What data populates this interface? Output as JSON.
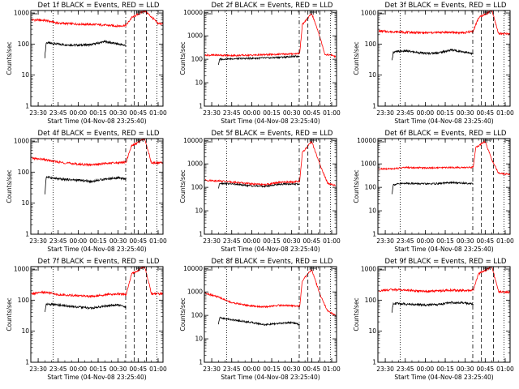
{
  "figure": {
    "colors": {
      "events": "#000000",
      "lld": "#ff0000",
      "axes": "#000000",
      "background": "#ffffff"
    }
  },
  "chart_data": [
    {
      "type": "line",
      "title": "Det 1f BLACK = Events, RED = LLD",
      "xlabel": "Start Time (04-Nov-08 23:25:40)",
      "ylabel": "Counts/sec",
      "xticks": [
        "23:30",
        "23:45",
        "00:00",
        "00:15",
        "00:30",
        "00:45",
        "01:00"
      ],
      "yticks": [
        "1",
        "10",
        "100",
        "1000"
      ],
      "ylim": [
        1,
        1200
      ],
      "yscale": "log",
      "series": [
        {
          "name": "Events",
          "x": [
            "23:35",
            "23:36",
            "23:40",
            "23:50",
            "00:00",
            "00:10",
            "00:20",
            "00:30",
            "00:36"
          ],
          "y": [
            38,
            110,
            105,
            95,
            92,
            96,
            120,
            100,
            90
          ]
        },
        {
          "name": "LLD",
          "x": [
            "23:25",
            "23:35",
            "23:45",
            "00:00",
            "00:15",
            "00:30",
            "00:36",
            "00:40",
            "00:50",
            "01:00",
            "01:05"
          ],
          "y": [
            600,
            580,
            470,
            440,
            420,
            380,
            400,
            700,
            1200,
            460,
            450
          ]
        }
      ]
    },
    {
      "type": "line",
      "title": "Det 2f BLACK = Events, RED = LLD",
      "xlabel": "Start Time (04-Nov-08 23:25:40)",
      "ylabel": "Counts/sec",
      "xticks": [
        "23:30",
        "23:45",
        "00:00",
        "00:15",
        "00:30",
        "00:45",
        "01:00"
      ],
      "yticks": [
        "1",
        "10",
        "100",
        "1000",
        "10000"
      ],
      "ylim": [
        1,
        12000
      ],
      "yscale": "log",
      "series": [
        {
          "name": "Events",
          "x": [
            "23:35",
            "23:36",
            "23:45",
            "00:00",
            "00:15",
            "00:30",
            "00:36"
          ],
          "y": [
            60,
            100,
            105,
            110,
            115,
            130,
            135
          ]
        },
        {
          "name": "LLD",
          "x": [
            "23:25",
            "23:35",
            "23:45",
            "00:00",
            "00:15",
            "00:30",
            "00:36",
            "00:38",
            "00:45",
            "00:50",
            "00:55",
            "01:00",
            "01:03"
          ],
          "y": [
            150,
            150,
            145,
            150,
            160,
            170,
            180,
            3000,
            9000,
            1500,
            160,
            150,
            130
          ]
        }
      ]
    },
    {
      "type": "line",
      "title": "Det 3f BLACK = Events, RED = LLD",
      "xlabel": "Start Time (04-Nov-08 23:25:40)",
      "ylabel": "Counts/sec",
      "xticks": [
        "23:30",
        "23:45",
        "00:00",
        "00:15",
        "00:30",
        "00:45",
        "01:00"
      ],
      "yticks": [
        "1",
        "10",
        "100",
        "1000"
      ],
      "ylim": [
        1,
        1200
      ],
      "yscale": "log",
      "series": [
        {
          "name": "Events",
          "x": [
            "23:35",
            "23:36",
            "23:45",
            "00:00",
            "00:10",
            "00:20",
            "00:30",
            "00:36"
          ],
          "y": [
            28,
            55,
            60,
            50,
            52,
            65,
            55,
            48
          ]
        },
        {
          "name": "LLD",
          "x": [
            "23:25",
            "23:35",
            "23:45",
            "00:00",
            "00:15",
            "00:30",
            "00:36",
            "00:40",
            "00:50",
            "00:55",
            "01:05"
          ],
          "y": [
            260,
            250,
            240,
            230,
            240,
            230,
            260,
            700,
            1200,
            220,
            210
          ]
        }
      ]
    },
    {
      "type": "line",
      "title": "Det 4f BLACK = Events, RED = LLD",
      "xlabel": "Start Time (04-Nov-08 23:25:40)",
      "ylabel": "Counts/sec",
      "xticks": [
        "23:30",
        "23:45",
        "00:00",
        "00:15",
        "00:30",
        "00:45",
        "01:00"
      ],
      "yticks": [
        "1",
        "10",
        "100",
        "1000"
      ],
      "ylim": [
        1,
        1200
      ],
      "yscale": "log",
      "series": [
        {
          "name": "Events",
          "x": [
            "23:35",
            "23:36",
            "23:45",
            "00:00",
            "00:10",
            "00:20",
            "00:30",
            "00:36"
          ],
          "y": [
            18,
            70,
            60,
            55,
            50,
            60,
            65,
            60
          ]
        },
        {
          "name": "LLD",
          "x": [
            "23:25",
            "23:35",
            "23:45",
            "00:00",
            "00:10",
            "00:20",
            "00:30",
            "00:36",
            "00:40",
            "00:50",
            "00:55",
            "01:05"
          ],
          "y": [
            280,
            250,
            210,
            180,
            170,
            190,
            200,
            210,
            700,
            1200,
            200,
            200
          ]
        }
      ]
    },
    {
      "type": "line",
      "title": "Det 5f BLACK = Events, RED = LLD",
      "xlabel": "Start Time (04-Nov-08 23:25:40)",
      "ylabel": "Counts/sec",
      "xticks": [
        "23:30",
        "23:45",
        "00:00",
        "00:15",
        "00:30",
        "00:45",
        "01:00"
      ],
      "yticks": [
        "1",
        "10",
        "100",
        "1000",
        "10000"
      ],
      "ylim": [
        1,
        12000
      ],
      "yscale": "log",
      "series": [
        {
          "name": "Events",
          "x": [
            "23:35",
            "23:36",
            "23:45",
            "00:00",
            "00:10",
            "00:20",
            "00:30",
            "00:36"
          ],
          "y": [
            90,
            150,
            140,
            115,
            110,
            135,
            140,
            135
          ]
        },
        {
          "name": "LLD",
          "x": [
            "23:25",
            "23:35",
            "23:45",
            "00:00",
            "00:10",
            "00:20",
            "00:30",
            "00:36",
            "00:38",
            "00:45",
            "00:52",
            "00:57",
            "01:03"
          ],
          "y": [
            200,
            190,
            170,
            140,
            130,
            160,
            170,
            180,
            3000,
            9000,
            700,
            150,
            120
          ]
        }
      ]
    },
    {
      "type": "line",
      "title": "Det 6f BLACK = Events, RED = LLD",
      "xlabel": "Start Time (04-Nov-08 23:25:40)",
      "ylabel": "Counts/sec",
      "xticks": [
        "23:30",
        "23:45",
        "00:00",
        "00:15",
        "00:30",
        "00:45",
        "01:00"
      ],
      "yticks": [
        "1",
        "10",
        "100",
        "1000",
        "10000"
      ],
      "ylim": [
        1,
        12000
      ],
      "yscale": "log",
      "series": [
        {
          "name": "Events",
          "x": [
            "23:35",
            "23:36",
            "23:45",
            "00:00",
            "00:10",
            "00:20",
            "00:30",
            "00:36"
          ],
          "y": [
            50,
            130,
            150,
            140,
            145,
            160,
            150,
            145
          ]
        },
        {
          "name": "LLD",
          "x": [
            "23:25",
            "23:35",
            "23:45",
            "00:00",
            "00:10",
            "00:20",
            "00:30",
            "00:36",
            "00:38",
            "00:45",
            "00:50",
            "00:55",
            "01:05"
          ],
          "y": [
            600,
            620,
            700,
            680,
            690,
            710,
            700,
            720,
            5000,
            9000,
            1500,
            400,
            350
          ]
        }
      ]
    },
    {
      "type": "line",
      "title": "Det 7f BLACK = Events, RED = LLD",
      "xlabel": "Start Time (04-Nov-08 23:25:40)",
      "ylabel": "Counts/sec",
      "xticks": [
        "23:30",
        "23:45",
        "00:00",
        "00:15",
        "00:30",
        "00:45",
        "01:00"
      ],
      "yticks": [
        "1",
        "10",
        "100",
        "1000"
      ],
      "ylim": [
        1,
        1200
      ],
      "yscale": "log",
      "series": [
        {
          "name": "Events",
          "x": [
            "23:35",
            "23:36",
            "23:45",
            "00:00",
            "00:10",
            "00:20",
            "00:30",
            "00:36"
          ],
          "y": [
            40,
            75,
            70,
            60,
            55,
            65,
            70,
            60
          ]
        },
        {
          "name": "LLD",
          "x": [
            "23:25",
            "23:35",
            "23:45",
            "00:00",
            "00:10",
            "00:20",
            "00:30",
            "00:36",
            "00:40",
            "00:50",
            "00:55",
            "01:05"
          ],
          "y": [
            160,
            180,
            150,
            140,
            130,
            150,
            160,
            150,
            700,
            1200,
            160,
            160
          ]
        }
      ]
    },
    {
      "type": "line",
      "title": "Det 8f BLACK = Events, RED = LLD",
      "xlabel": "Start Time (04-Nov-08 23:25:40)",
      "ylabel": "Counts/sec",
      "xticks": [
        "23:30",
        "23:45",
        "00:00",
        "00:15",
        "00:30",
        "00:45",
        "01:00"
      ],
      "yticks": [
        "1",
        "10",
        "100",
        "1000",
        "10000"
      ],
      "ylim": [
        1,
        12000
      ],
      "yscale": "log",
      "series": [
        {
          "name": "Events",
          "x": [
            "23:35",
            "23:36",
            "23:45",
            "00:00",
            "00:10",
            "00:20",
            "00:30",
            "00:36"
          ],
          "y": [
            40,
            80,
            65,
            50,
            40,
            45,
            50,
            40
          ]
        },
        {
          "name": "LLD",
          "x": [
            "23:25",
            "23:35",
            "23:45",
            "00:00",
            "00:10",
            "00:20",
            "00:30",
            "00:36",
            "00:38",
            "00:45",
            "00:52",
            "00:57",
            "01:03"
          ],
          "y": [
            900,
            600,
            350,
            250,
            230,
            270,
            260,
            250,
            3000,
            9000,
            600,
            150,
            100
          ]
        }
      ]
    },
    {
      "type": "line",
      "title": "Det 9f BLACK = Events, RED = LLD",
      "xlabel": "Start Time (04-Nov-08 23:25:40)",
      "ylabel": "Counts/sec",
      "xticks": [
        "23:30",
        "23:45",
        "00:00",
        "00:15",
        "00:30",
        "00:45",
        "01:00"
      ],
      "yticks": [
        "1",
        "10",
        "100",
        "1000"
      ],
      "ylim": [
        1,
        1200
      ],
      "yscale": "log",
      "series": [
        {
          "name": "Events",
          "x": [
            "23:35",
            "23:36",
            "23:45",
            "00:00",
            "00:10",
            "00:20",
            "00:30",
            "00:36"
          ],
          "y": [
            40,
            80,
            75,
            70,
            72,
            85,
            80,
            75
          ]
        },
        {
          "name": "LLD",
          "x": [
            "23:25",
            "23:35",
            "23:45",
            "00:00",
            "00:10",
            "00:20",
            "00:30",
            "00:36",
            "00:40",
            "00:50",
            "00:55",
            "01:05"
          ],
          "y": [
            200,
            220,
            210,
            190,
            200,
            210,
            200,
            210,
            700,
            1200,
            190,
            180
          ]
        }
      ]
    }
  ]
}
